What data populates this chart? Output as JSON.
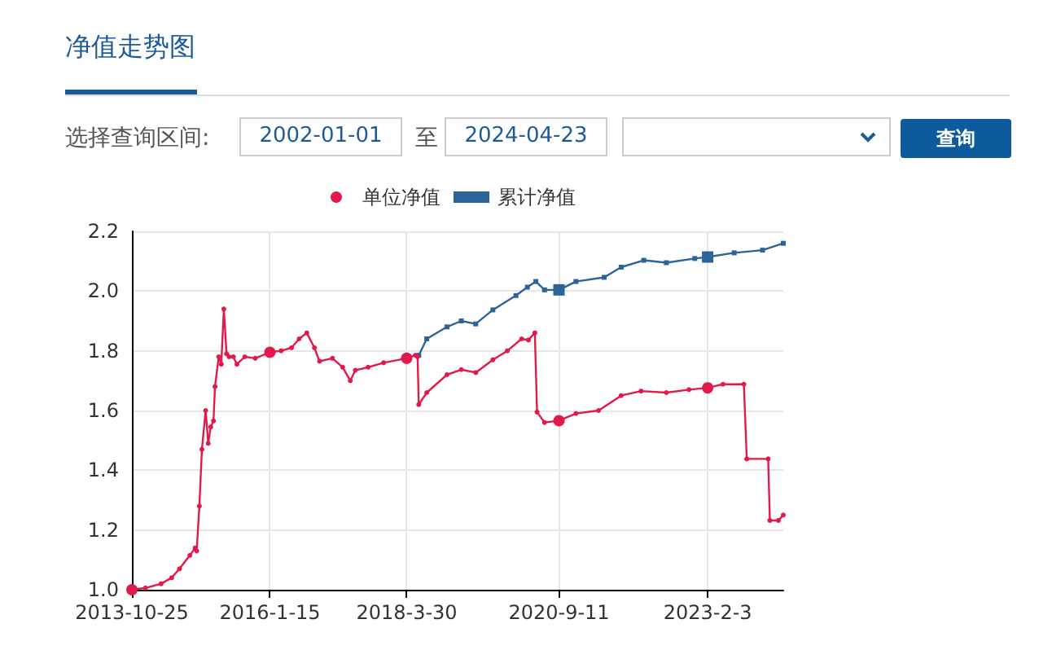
{
  "chart_data": {
    "type": "line",
    "title": "净值走势图",
    "annotations": [
      "选择查询区间:",
      "2002-01-01",
      "至",
      "2024-04-23",
      "查询"
    ],
    "legend": "top",
    "grid": true,
    "xlim": [
      "2013-10-25",
      "2024-04-23"
    ],
    "xticks": [
      {
        "value": "2013-10-25",
        "label": "2013-10-25"
      },
      {
        "value": "2016-01-15",
        "label": "2016-1-15"
      },
      {
        "value": "2018-03-30",
        "label": "2018-3-30"
      },
      {
        "value": "2020-09-11",
        "label": "2020-9-11"
      },
      {
        "value": "2023-02-03",
        "label": "2023-2-3"
      }
    ],
    "ylim": [
      1.0,
      2.2
    ],
    "yticks": [
      {
        "value": 1.0,
        "label": "1.0"
      },
      1.2,
      1.4,
      1.6,
      1.8,
      {
        "value": 2.0,
        "label": "2.0"
      },
      2.2
    ],
    "series": [
      {
        "name": "单位净值",
        "color": "#e2194b",
        "marker": "circle",
        "x": [
          "2013-10-25",
          "2014-01-13",
          "2014-04-15",
          "2014-06-16",
          "2014-08-01",
          "2014-10-01",
          "2014-11-01",
          "2014-11-10",
          "2014-11-26",
          "2014-12-11",
          "2015-01-02",
          "2015-01-17",
          "2015-02-01",
          "2015-02-17",
          "2015-02-26",
          "2015-03-20",
          "2015-04-04",
          "2015-04-19",
          "2015-05-05",
          "2015-05-20",
          "2015-06-14",
          "2015-07-05",
          "2015-08-20",
          "2015-10-21",
          "2016-01-15",
          "2016-03-21",
          "2016-05-21",
          "2016-07-05",
          "2016-08-19",
          "2016-10-03",
          "2016-11-02",
          "2017-01-17",
          "2017-03-18",
          "2017-05-02",
          "2017-06-01",
          "2017-08-15",
          "2017-11-14",
          "2018-03-30",
          "2018-05-20",
          "2018-06-02",
          "2018-06-09",
          "2018-07-26",
          "2018-11-22",
          "2019-02-14",
          "2019-05-10",
          "2019-08-19",
          "2019-11-12",
          "2020-02-04",
          "2020-03-15",
          "2020-04-22",
          "2020-05-05",
          "2020-06-18",
          "2020-09-11",
          "2020-12-20",
          "2021-05-02",
          "2021-09-12",
          "2022-01-07",
          "2022-06-05",
          "2022-10-16",
          "2023-02-03",
          "2023-05-04",
          "2023-09-04",
          "2023-09-21",
          "2024-01-25",
          "2024-02-04",
          "2024-03-25",
          "2024-04-23"
        ],
        "values": [
          1.0,
          1.006,
          1.02,
          1.04,
          1.07,
          1.115,
          1.14,
          1.13,
          1.28,
          1.47,
          1.6,
          1.49,
          1.545,
          1.565,
          1.68,
          1.78,
          1.755,
          1.94,
          1.79,
          1.78,
          1.78,
          1.755,
          1.78,
          1.775,
          1.795,
          1.8,
          1.81,
          1.84,
          1.86,
          1.81,
          1.765,
          1.775,
          1.745,
          1.7,
          1.735,
          1.745,
          1.76,
          1.775,
          1.785,
          1.78,
          1.62,
          1.66,
          1.72,
          1.737,
          1.727,
          1.77,
          1.8,
          1.84,
          1.836,
          1.86,
          1.595,
          1.56,
          1.566,
          1.59,
          1.6,
          1.65,
          1.665,
          1.66,
          1.67,
          1.676,
          1.688,
          1.688,
          1.438,
          1.438,
          1.232,
          1.232,
          1.25
        ]
      },
      {
        "name": "累计净值",
        "color": "#2c6399",
        "marker": "square",
        "x": [
          "2018-06-09",
          "2018-07-26",
          "2018-11-22",
          "2019-02-14",
          "2019-05-10",
          "2019-08-19",
          "2020-01-02",
          "2020-03-09",
          "2020-04-28",
          "2020-06-18",
          "2020-09-11",
          "2020-12-20",
          "2021-06-04",
          "2021-09-12",
          "2022-01-23",
          "2022-06-05",
          "2022-11-19",
          "2023-02-03",
          "2023-07-09",
          "2023-12-23",
          "2024-04-23"
        ],
        "values": [
          1.785,
          1.84,
          1.88,
          1.9,
          1.89,
          1.937,
          1.985,
          2.013,
          2.032,
          2.004,
          2.004,
          2.032,
          2.046,
          2.08,
          2.103,
          2.095,
          2.109,
          2.114,
          2.128,
          2.137,
          2.16
        ]
      }
    ]
  }
}
